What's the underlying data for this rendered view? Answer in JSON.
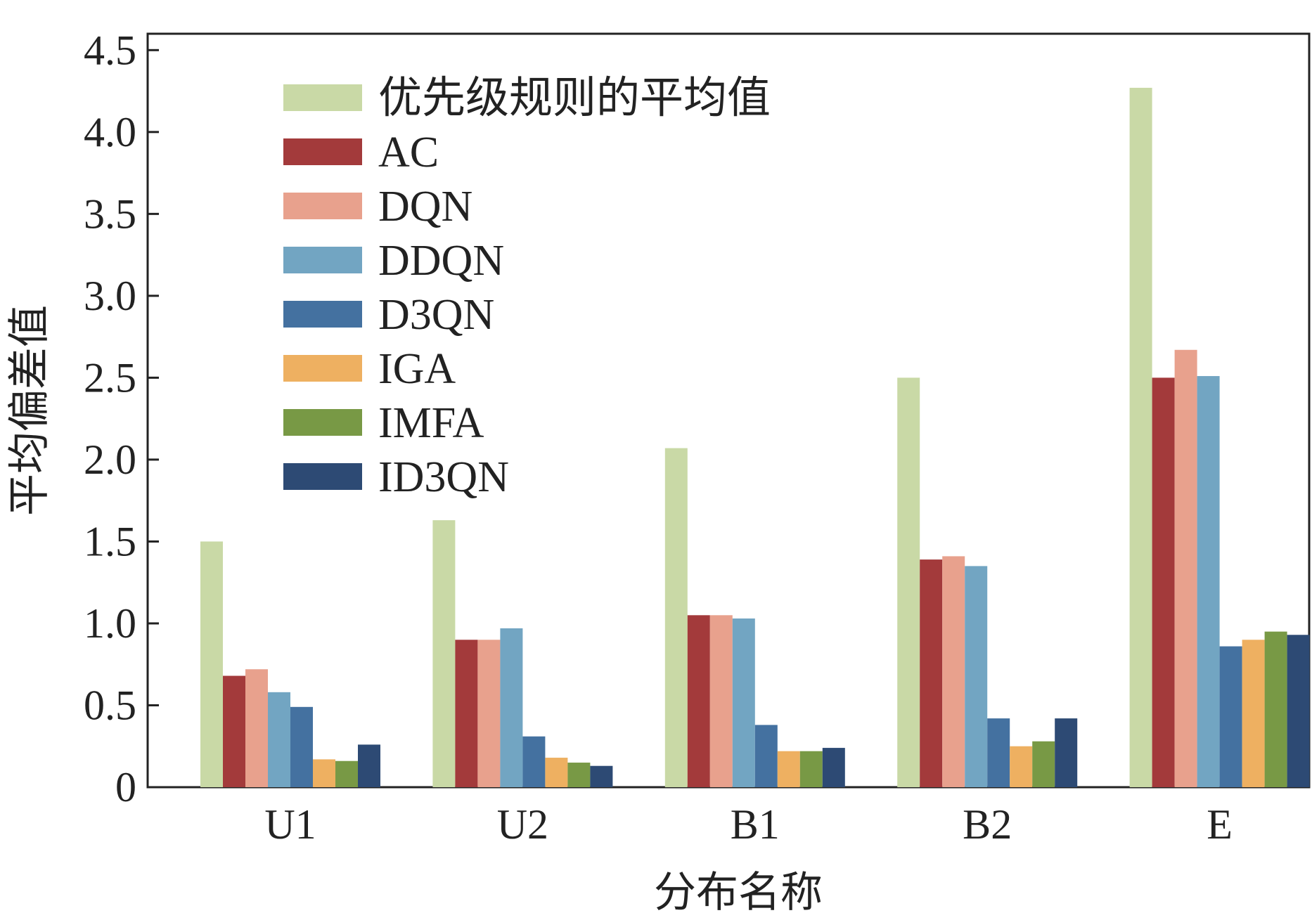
{
  "chart_data": {
    "type": "bar",
    "xlabel": "分布名称",
    "ylabel": "平均偏差值",
    "ylim": [
      0,
      4.6
    ],
    "yticks": [
      0,
      0.5,
      1.0,
      1.5,
      2.0,
      2.5,
      3.0,
      3.5,
      4.0,
      4.5
    ],
    "ytick_labels": [
      "0",
      "0.5",
      "1.0",
      "1.5",
      "2.0",
      "2.5",
      "3.0",
      "3.5",
      "4.0",
      "4.5"
    ],
    "categories": [
      "U1",
      "U2",
      "B1",
      "B2",
      "E"
    ],
    "legend_position": "top-left",
    "grid": false,
    "series": [
      {
        "name": "优先级规则的平均值",
        "color": "#c9d9a6",
        "values": [
          1.5,
          1.63,
          2.07,
          2.5,
          4.27
        ]
      },
      {
        "name": "AC",
        "color": "#a33a3b",
        "values": [
          0.68,
          0.9,
          1.05,
          1.39,
          2.5
        ]
      },
      {
        "name": "DQN",
        "color": "#e8a18d",
        "values": [
          0.72,
          0.9,
          1.05,
          1.41,
          2.67
        ]
      },
      {
        "name": "DDQN",
        "color": "#72a5c2",
        "values": [
          0.58,
          0.97,
          1.03,
          1.35,
          2.51
        ]
      },
      {
        "name": "D3QN",
        "color": "#4471a0",
        "values": [
          0.49,
          0.31,
          0.38,
          0.42,
          0.86
        ]
      },
      {
        "name": "IGA",
        "color": "#eeb061",
        "values": [
          0.17,
          0.18,
          0.22,
          0.25,
          0.9
        ]
      },
      {
        "name": "IMFA",
        "color": "#789945",
        "values": [
          0.16,
          0.15,
          0.22,
          0.28,
          0.95
        ]
      },
      {
        "name": "ID3QN",
        "color": "#2d4a74",
        "values": [
          0.26,
          0.13,
          0.24,
          0.42,
          0.93
        ]
      }
    ]
  }
}
